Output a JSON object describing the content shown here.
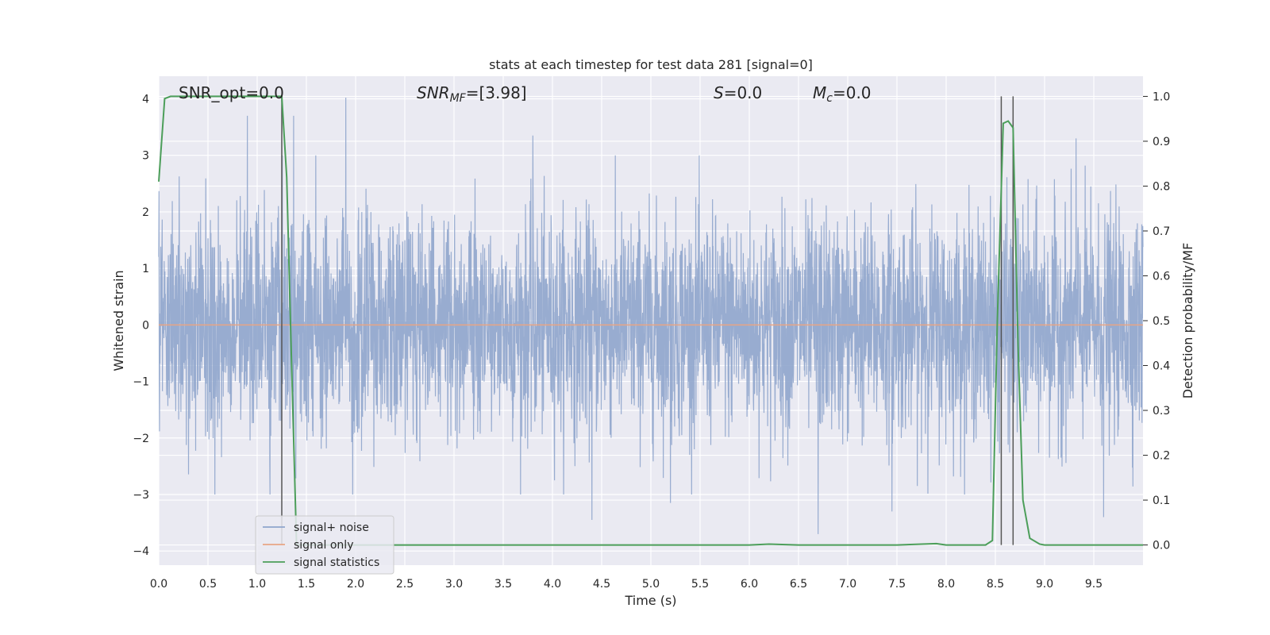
{
  "chart_data": {
    "type": "line",
    "title": "stats at each timestep for test data 281 [signal=0]",
    "xlabel": "Time (s)",
    "ylabel_left": "Whitened strain",
    "ylabel_right": "Detection probability/MF",
    "xlim": [
      0.0,
      10.0
    ],
    "ylim_left": [
      -4.25,
      4.4
    ],
    "ylim_right": [
      -0.045,
      1.045
    ],
    "xticks": [
      0.0,
      0.5,
      1.0,
      1.5,
      2.0,
      2.5,
      3.0,
      3.5,
      4.0,
      4.5,
      5.0,
      5.5,
      6.0,
      6.5,
      7.0,
      7.5,
      8.0,
      8.5,
      9.0,
      9.5
    ],
    "xtick_labels": [
      "0.0",
      "0.5",
      "1.0",
      "1.5",
      "2.0",
      "2.5",
      "3.0",
      "3.5",
      "4.0",
      "4.5",
      "5.0",
      "5.5",
      "6.0",
      "6.5",
      "7.0",
      "7.5",
      "8.0",
      "8.5",
      "9.0",
      "9.5"
    ],
    "yticks_left": [
      4,
      3,
      2,
      1,
      0,
      -1,
      -2,
      -3,
      -4
    ],
    "ytick_labels_left": [
      "4",
      "3",
      "2",
      "1",
      "0",
      "−1",
      "−2",
      "−3",
      "−4"
    ],
    "yticks_right": [
      1.0,
      0.9,
      0.8,
      0.7,
      0.6,
      0.5,
      0.4,
      0.3,
      0.2,
      0.1,
      0.0
    ],
    "ytick_labels_right": [
      "1.0",
      "0.9",
      "0.8",
      "0.7",
      "0.6",
      "0.5",
      "0.4",
      "0.3",
      "0.2",
      "0.1",
      "0.0"
    ],
    "grid": true,
    "legend_position": "lower-left",
    "annotations": {
      "snr_opt": "SNR_opt=0.0",
      "snr_mf_sym": "SNR",
      "snr_mf_sub": "MF",
      "snr_mf_val": "=[3.98]",
      "s_sym": "S",
      "s_val": "=0.0",
      "mc_sym": "M",
      "mc_sub": "c",
      "mc_val": "=0.0"
    },
    "series": [
      {
        "name": "signal+ noise",
        "axis": "left",
        "color": "#8fa5cc",
        "description_values": "white noise, std≈1, range ≈ -3.7 to 4.0",
        "peaks": [
          {
            "x": 0.9,
            "y": 3.7
          },
          {
            "x": 1.37,
            "y": 3.7
          },
          {
            "x": 1.9,
            "y": 4.02
          },
          {
            "x": 3.8,
            "y": 3.35
          },
          {
            "x": 9.32,
            "y": 3.3
          },
          {
            "x": 4.4,
            "y": -3.45
          },
          {
            "x": 6.7,
            "y": -3.7
          },
          {
            "x": 9.6,
            "y": -3.4
          },
          {
            "x": 5.2,
            "y": -3.15
          },
          {
            "x": 0.57,
            "y": -3.0
          },
          {
            "x": 7.45,
            "y": -3.3
          }
        ]
      },
      {
        "name": "signal only",
        "axis": "left",
        "color": "#e8a584",
        "x": [
          0.0,
          10.0
        ],
        "y": [
          0.0,
          0.0
        ]
      },
      {
        "name": "signal statistics",
        "axis": "right",
        "color": "#4c9e5a",
        "x": [
          0.0,
          0.06,
          0.12,
          0.2,
          0.4,
          0.8,
          1.2,
          1.25,
          1.3,
          1.35,
          1.4,
          2.0,
          4.0,
          6.0,
          6.2,
          6.5,
          7.5,
          7.9,
          8.0,
          8.4,
          8.47,
          8.52,
          8.58,
          8.63,
          8.68,
          8.73,
          8.78,
          8.85,
          8.95,
          9.0,
          9.1,
          9.5,
          10.0
        ],
        "y": [
          0.81,
          0.995,
          1.0,
          1.0,
          1.0,
          1.0,
          1.0,
          1.0,
          0.82,
          0.4,
          0.0,
          0.0,
          0.0,
          0.0,
          0.002,
          0.0,
          0.0,
          0.003,
          0.0,
          0.0,
          0.01,
          0.5,
          0.94,
          0.945,
          0.93,
          0.45,
          0.1,
          0.015,
          0.002,
          0.0,
          0.0,
          0.0,
          0.0
        ]
      }
    ],
    "vertical_lines": [
      1.25,
      8.56,
      8.68
    ],
    "vertical_line_range_right": [
      0.0,
      1.0
    ]
  }
}
